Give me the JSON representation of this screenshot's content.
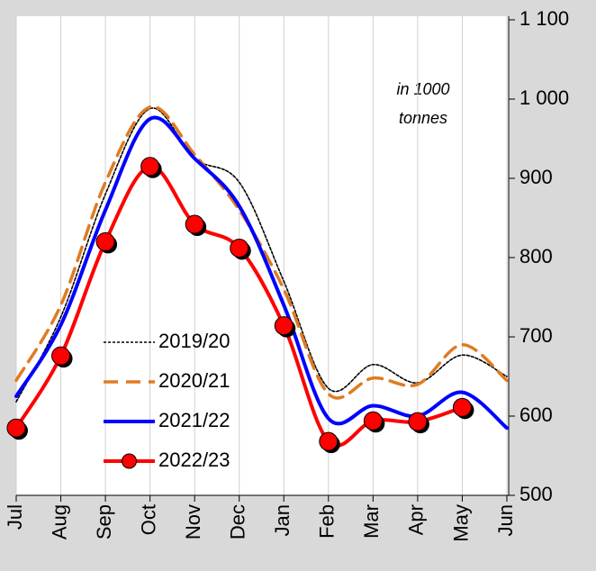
{
  "chart_data": {
    "type": "line",
    "annotation": [
      "in 1000",
      "tonnes"
    ],
    "categories": [
      "Jul",
      "Aug",
      "Sep",
      "Oct",
      "Nov",
      "Dec",
      "Jan",
      "Feb",
      "Mar",
      "Apr",
      "May",
      "Jun"
    ],
    "ylim": [
      500,
      1100
    ],
    "yticks": [
      500,
      600,
      700,
      800,
      900,
      {
        "value": 1000,
        "label": "1 000"
      },
      {
        "value": 1100,
        "label": "1 100"
      }
    ],
    "grid": true,
    "legend": "lower left",
    "series": [
      {
        "name": "2019/20",
        "color": "#000000",
        "style": "dotted",
        "values": [
          618,
          725,
          880,
          988,
          925,
          895,
          770,
          635,
          665,
          642,
          677,
          650
        ]
      },
      {
        "name": "2020/21",
        "color": "#e07b22",
        "style": "dashed",
        "values": [
          645,
          740,
          895,
          990,
          930,
          860,
          760,
          628,
          648,
          640,
          690,
          645
        ]
      },
      {
        "name": "2021/22",
        "color": "#0000ff",
        "style": "solid",
        "values": [
          625,
          715,
          860,
          975,
          925,
          865,
          740,
          597,
          613,
          600,
          630,
          585
        ]
      },
      {
        "name": "2022/23",
        "color": "#ff0000",
        "style": "markers",
        "values": [
          585,
          676,
          820,
          915,
          842,
          812,
          714,
          568,
          594,
          593,
          611,
          null
        ]
      }
    ]
  }
}
